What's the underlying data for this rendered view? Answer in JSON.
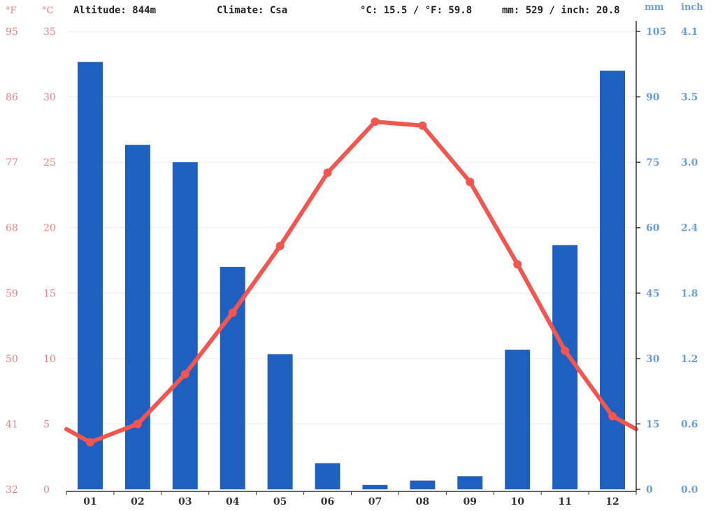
{
  "header": {
    "altitude": "Altitude: 844m",
    "climate": "Climate: Csa",
    "temp_avg": "°C: 15.5 / °F: 59.8",
    "precip_total": "mm: 529 / inch: 20.8"
  },
  "axis_units": {
    "fahrenheit": "°F",
    "celsius": "°C",
    "mm": "mm",
    "inch": "inch"
  },
  "colors": {
    "precipitation": "#1f5fbf",
    "temperature": "#f5554f",
    "temp_axis": "#f08080",
    "precip_axis": "#6a9fd8"
  },
  "chart_data": {
    "type": "bar",
    "categories": [
      "01",
      "02",
      "03",
      "04",
      "05",
      "06",
      "07",
      "08",
      "09",
      "10",
      "11",
      "12"
    ],
    "series": [
      {
        "name": "precipitation_mm",
        "type": "bar",
        "values": [
          98,
          79,
          75,
          51,
          31,
          6,
          1,
          2,
          3,
          32,
          56,
          96
        ]
      },
      {
        "name": "temperature_c",
        "type": "line",
        "values": [
          3.6,
          5.0,
          8.8,
          13.5,
          18.6,
          24.2,
          28.1,
          27.8,
          23.5,
          17.2,
          10.6,
          5.6
        ]
      }
    ],
    "celsius_ticks": [
      "35",
      "30",
      "25",
      "20",
      "15",
      "10",
      "5",
      "0"
    ],
    "fahrenheit_ticks": [
      "95",
      "86",
      "77",
      "68",
      "59",
      "50",
      "41",
      "32"
    ],
    "mm_ticks": [
      "105",
      "90",
      "75",
      "60",
      "45",
      "30",
      "15",
      "0"
    ],
    "inch_ticks": [
      "4.1",
      "3.5",
      "3.0",
      "2.4",
      "1.8",
      "1.2",
      "0.6",
      "0.0"
    ],
    "celsius_range": [
      0,
      35
    ],
    "mm_range": [
      0,
      105
    ]
  }
}
